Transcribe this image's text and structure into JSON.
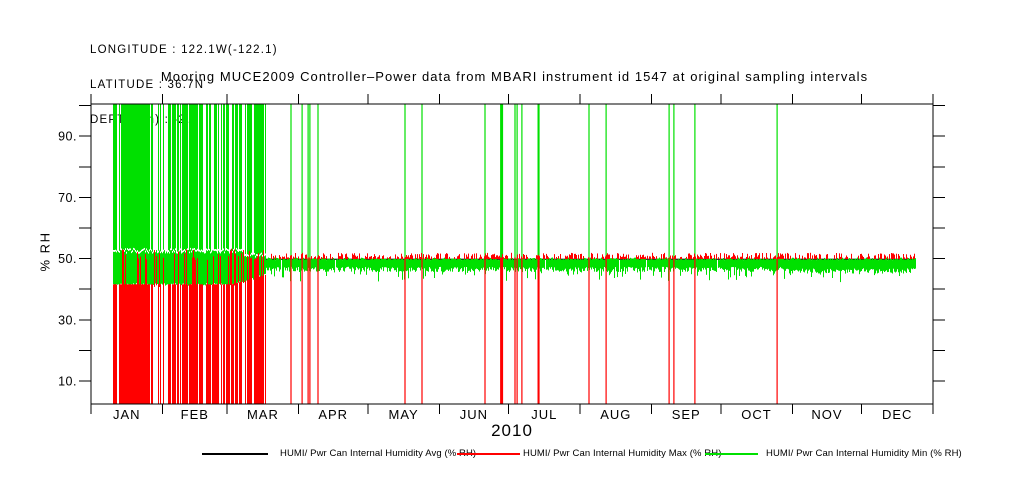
{
  "meta": {
    "longitude": "LONGITUDE : 122.1W(-122.1)",
    "latitude": "LATITUDE : 36.7N",
    "depth": "DEPTH (m) : -2.5"
  },
  "title": "Mooring MUCE2009 Controller–Power data from MBARI instrument id 1547 at original sampling intervals",
  "colors": {
    "background": "#ffffff",
    "axis": "#000000",
    "avg": "#000000",
    "max": "#ff0000",
    "min": "#00e000"
  },
  "y_axis": {
    "label": "% RH",
    "range_low": 2.5,
    "range_high": 100.5,
    "labeled_ticks": [
      {
        "value": 90,
        "label": "90."
      },
      {
        "value": 70,
        "label": "70."
      },
      {
        "value": 50,
        "label": "50."
      },
      {
        "value": 30,
        "label": "30."
      },
      {
        "value": 10,
        "label": "10."
      }
    ],
    "minor_ticks": [
      100,
      80,
      60,
      40,
      20
    ]
  },
  "x_axis": {
    "year": "2010",
    "months": [
      "JAN",
      "FEB",
      "MAR",
      "APR",
      "MAY",
      "JUN",
      "JUL",
      "AUG",
      "SEP",
      "OCT",
      "NOV",
      "DEC"
    ],
    "month_days": [
      31,
      28,
      31,
      30,
      31,
      30,
      31,
      31,
      30,
      31,
      30,
      31
    ]
  },
  "legend": {
    "items": [
      {
        "label": "HUMI/ Pwr Can Internal Humidity Avg (% RH)",
        "color": "#000000"
      },
      {
        "label": "HUMI/ Pwr Can Internal Humidity Max (% RH)",
        "color": "#ff0000"
      },
      {
        "label": "HUMI/ Pwr Can Internal Humidity Min (% RH)",
        "color": "#00e000"
      }
    ]
  },
  "chart_data": {
    "type": "line",
    "title": "Mooring MUCE2009 Controller–Power data from MBARI instrument id 1547 at original sampling intervals",
    "xlabel": "2010",
    "ylabel": "% RH",
    "x_unit": "day_of_year_2010",
    "ylim": [
      2.5,
      100.5
    ],
    "data_start_day": 9.5,
    "data_end_day": 357,
    "series": [
      {
        "name": "HUMI/ Pwr Can Internal Humidity Avg (% RH)",
        "color": "#000000",
        "baseline_value": 49.9
      },
      {
        "name": "HUMI/ Pwr Can Internal Humidity Max (% RH)",
        "color": "#ff0000",
        "baseline_value": 50.8,
        "baseline_jitter": 0.8,
        "dash_probability": 0.55
      },
      {
        "name": "HUMI/ Pwr Can Internal Humidity Min (% RH)",
        "color": "#00e000",
        "baseline_band": [
          46.8,
          50.3
        ],
        "downtick_probability": 0.13,
        "downtick_depth": 2.5
      }
    ],
    "dense_dropout_period": {
      "start_day": 9.5,
      "end_day": 75.5,
      "green_top": 100.4,
      "band_top": 52.9,
      "band_bottom": 41.1,
      "red_top": 41.6,
      "red_bottom": 2.6,
      "gap_probability": 0.27,
      "mid_red_spike_probability": 0.16,
      "description": "Min repeatedly spikes to ~100 and Max drops to ~3 between samples near 41-53"
    },
    "spike_days": [
      86.7,
      91.5,
      94.1,
      94.9,
      98.4,
      136.1,
      143.5,
      170.8,
      178,
      183.8,
      184.7,
      186.8,
      193.8,
      194.2,
      215.9,
      223.3,
      250.6,
      252.7,
      261.8,
      297.4
    ],
    "wide_spike_days": [
      178
    ],
    "spike_green_top": 100.4,
    "spike_red_bottom": 2.6,
    "noise_seed": 11
  }
}
